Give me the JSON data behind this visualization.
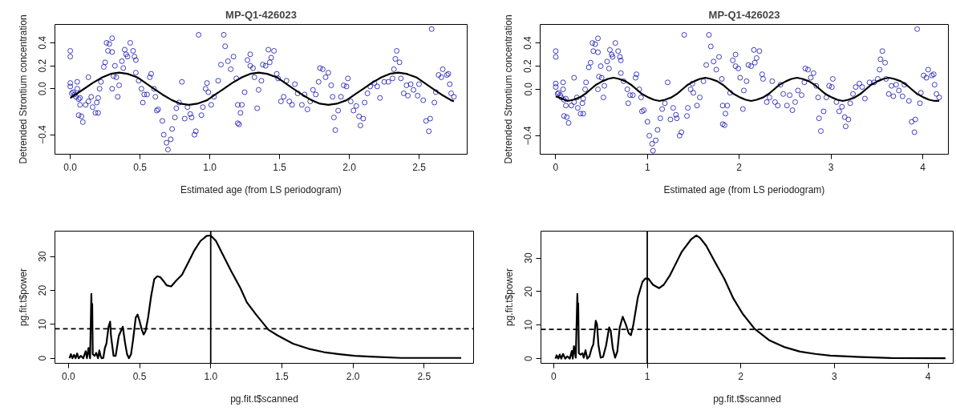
{
  "chart_data": [
    {
      "type": "scatter",
      "title": "MP-Q1-426023",
      "xlabel": "Estimated age (from LS periodogram)",
      "ylabel": "Detrended Strontium concentration",
      "xlim": [
        -0.11,
        2.845
      ],
      "ylim": [
        -0.57,
        0.56
      ],
      "xticks": [
        {
          "value": 0,
          "label": "0.0"
        },
        {
          "value": 0.5,
          "label": "0.5"
        },
        {
          "value": 1,
          "label": "1.0"
        },
        {
          "value": 1.5,
          "label": "1.5"
        },
        {
          "value": 2,
          "label": "2.0"
        },
        {
          "value": 2.5,
          "label": "2.5"
        }
      ],
      "yticks": [
        -0.4,
        {
          "value": 0,
          "label": "0.0"
        },
        0.2,
        0.4
      ],
      "series": [
        {
          "type": "scatter",
          "marker": "circle",
          "color": "#1010b0",
          "x": [
            0,
            0,
            0,
            0,
            0.01,
            0.02,
            0.03,
            0.04,
            0.05,
            0.05,
            0.06,
            0.07,
            0.06,
            0.07,
            0.08,
            0.09,
            0.11,
            0.13,
            0.13,
            0.15,
            0.16,
            0.18,
            0.19,
            0.2,
            0.2,
            0.21,
            0.22,
            0.24,
            0.25,
            0.26,
            0.27,
            0.28,
            0.3,
            0.3,
            0.3,
            0.31,
            0.32,
            0.33,
            0.34,
            0.35,
            0.37,
            0.38,
            0.39,
            0.4,
            0.41,
            0.43,
            0.45,
            0.46,
            0.47,
            0.47,
            0.49,
            0.51,
            0.52,
            0.53,
            0.55,
            0.57,
            0.58,
            0.6,
            0.61,
            0.62,
            0.63,
            0.66,
            0.67,
            0.69,
            0.7,
            0.72,
            0.73,
            0.75,
            0.76,
            0.78,
            0.8,
            0.82,
            0.84,
            0.86,
            0.87,
            0.89,
            0.9,
            0.92,
            0.94,
            0.95,
            0.97,
            0.98,
            0.99,
            1.01,
            1.03,
            1.06,
            1.08,
            1.1,
            1.11,
            1.13,
            1.15,
            1.17,
            1.19,
            1.2,
            1.2,
            1.21,
            1.22,
            1.23,
            1.25,
            1.27,
            1.29,
            1.29,
            1.31,
            1.32,
            1.34,
            1.35,
            1.37,
            1.38,
            1.4,
            1.42,
            1.43,
            1.44,
            1.46,
            1.48,
            1.49,
            1.51,
            1.53,
            1.55,
            1.57,
            1.59,
            1.61,
            1.63,
            1.66,
            1.68,
            1.7,
            1.72,
            1.74,
            1.76,
            1.78,
            1.79,
            1.81,
            1.83,
            1.85,
            1.87,
            1.88,
            1.89,
            1.9,
            1.92,
            1.94,
            1.96,
            1.98,
            1.99,
            2.01,
            2.03,
            2.05,
            2.07,
            2.08,
            2.1,
            2.11,
            2.13,
            2.15,
            2.18,
            2.2,
            2.22,
            2.25,
            2.28,
            2.31,
            2.32,
            2.33,
            2.34,
            2.36,
            2.37,
            2.39,
            2.41,
            2.42,
            2.44,
            2.46,
            2.49,
            2.5,
            2.53,
            2.55,
            2.57,
            2.58,
            2.59,
            2.61,
            2.62,
            2.64,
            2.66,
            2.67,
            2.7,
            2.71,
            2.72,
            2.73,
            2.75
          ],
          "values": [
            0.33,
            0.28,
            0.05,
            0.02,
            -0.04,
            -0.03,
            -0.05,
            -0.07,
            0,
            0.06,
            -0.09,
            -0.14,
            -0.23,
            -0.08,
            -0.24,
            -0.29,
            -0.14,
            0.1,
            -0.11,
            -0.07,
            -0.16,
            -0.21,
            -0.12,
            -0.08,
            -0.21,
            0,
            0.06,
            0.19,
            0.23,
            0.4,
            0.33,
            0.39,
            0.32,
            0.44,
            0,
            0.11,
            0.2,
            0.1,
            -0.07,
            0.03,
            0.24,
            0.18,
            0.34,
            0.3,
            0.28,
            0.4,
            0.33,
            0.28,
            0.25,
            0.14,
            0.07,
            0,
            -0.12,
            -0.05,
            -0.05,
            0.1,
            0.13,
            0,
            -0.07,
            -0.19,
            -0.18,
            -0.28,
            -0.4,
            -0.47,
            -0.53,
            -0.44,
            -0.35,
            -0.25,
            -0.17,
            -0.12,
            0.06,
            -0.26,
            -0.16,
            -0.22,
            -0.25,
            -0.4,
            -0.37,
            0.47,
            -0.23,
            -0.16,
            0,
            0.05,
            -0.03,
            -0.14,
            -0.07,
            0.07,
            0.21,
            0.47,
            0.37,
            0.24,
            0.17,
            0.28,
            0.09,
            -0.14,
            -0.3,
            -0.31,
            -0.21,
            -0.14,
            -0.03,
            0.25,
            0.3,
            0.2,
            0.18,
            0.1,
            -0.17,
            -0.01,
            0.07,
            0.21,
            0.2,
            0.34,
            0.23,
            0.27,
            0.33,
            0.13,
            0.09,
            -0.11,
            -0.07,
            0.07,
            -0.11,
            -0.14,
            0.04,
            -0.04,
            -0.14,
            -0.05,
            -0.18,
            -0.11,
            -0.01,
            -0.05,
            0.06,
            0.18,
            0.17,
            0.1,
            0.14,
            0.03,
            -0.07,
            -0.25,
            -0.36,
            -0.19,
            -0.07,
            0.03,
            0.02,
            0.09,
            -0.11,
            -0.19,
            -0.15,
            -0.24,
            -0.32,
            -0.26,
            -0.12,
            -0.04,
            0.02,
            0.05,
            0.02,
            -0.08,
            0.06,
            0.06,
            0.09,
            0.17,
            0.26,
            0.33,
            0.23,
            0.09,
            -0.04,
            0.03,
            -0.06,
            0.04,
            -0.01,
            -0.06,
            0.04,
            -0.1,
            -0.28,
            -0.37,
            -0.26,
            0.52,
            -0.12,
            -0.03,
            0.12,
            0.1,
            0.17,
            0.12,
            0.13,
            0.04,
            -0.04,
            -0.07
          ]
        },
        {
          "type": "line",
          "color": "#000000",
          "x": [
            0,
            0.1,
            0.16,
            0.23,
            0.29,
            0.35,
            0.41,
            0.48,
            0.54,
            0.6,
            0.66,
            0.73,
            0.79,
            0.85,
            0.91,
            0.98,
            1.04,
            1.1,
            1.16,
            1.23,
            1.29,
            1.35,
            1.41,
            1.48,
            1.54,
            1.6,
            1.66,
            1.73,
            1.79,
            1.85,
            1.91,
            1.98,
            2.04,
            2.1,
            2.16,
            2.23,
            2.29,
            2.35,
            2.41,
            2.48,
            2.54,
            2.6,
            2.66,
            2.73,
            2.75
          ],
          "values": [
            -0.08,
            0,
            0.05,
            0.1,
            0.13,
            0.14,
            0.13,
            0.1,
            0.05,
            0,
            -0.05,
            -0.1,
            -0.13,
            -0.14,
            -0.13,
            -0.1,
            -0.05,
            0,
            0.05,
            0.1,
            0.13,
            0.14,
            0.13,
            0.1,
            0.05,
            0,
            -0.05,
            -0.1,
            -0.13,
            -0.14,
            -0.13,
            -0.1,
            -0.05,
            0,
            0.05,
            0.1,
            0.13,
            0.14,
            0.13,
            0.1,
            0.05,
            0,
            -0.05,
            -0.1,
            -0.11
          ]
        }
      ]
    },
    {
      "type": "scatter",
      "title": "MP-Q1-426023",
      "xlabel": "Estimated age (from LS periodogram)",
      "ylabel": "Detrended Strontium concentration",
      "xlim": [
        -0.17,
        4.28
      ],
      "ylim": [
        -0.56,
        0.56
      ],
      "xticks": [
        0,
        1,
        2,
        3,
        4
      ],
      "yticks": [
        -0.4,
        {
          "value": 0,
          "label": "0.0"
        },
        0.2,
        0.4
      ],
      "series": [
        {
          "type": "scatter",
          "marker": "circle",
          "color": "#1010b0",
          "x": [
            0,
            0,
            0,
            0,
            0.02,
            0.03,
            0.05,
            0.06,
            0.08,
            0.08,
            0.09,
            0.11,
            0.09,
            0.11,
            0.12,
            0.14,
            0.17,
            0.2,
            0.2,
            0.23,
            0.24,
            0.27,
            0.29,
            0.3,
            0.3,
            0.32,
            0.33,
            0.36,
            0.38,
            0.4,
            0.41,
            0.43,
            0.46,
            0.46,
            0.46,
            0.47,
            0.49,
            0.5,
            0.52,
            0.53,
            0.56,
            0.58,
            0.59,
            0.61,
            0.62,
            0.65,
            0.68,
            0.7,
            0.71,
            0.71,
            0.74,
            0.78,
            0.79,
            0.81,
            0.84,
            0.87,
            0.88,
            0.91,
            0.93,
            0.94,
            0.96,
            1,
            1.02,
            1.05,
            1.06,
            1.09,
            1.11,
            1.14,
            1.16,
            1.19,
            1.22,
            1.25,
            1.28,
            1.31,
            1.32,
            1.35,
            1.37,
            1.4,
            1.43,
            1.44,
            1.47,
            1.49,
            1.5,
            1.54,
            1.57,
            1.61,
            1.64,
            1.67,
            1.69,
            1.72,
            1.75,
            1.78,
            1.81,
            1.82,
            1.82,
            1.84,
            1.85,
            1.87,
            1.9,
            1.93,
            1.96,
            1.96,
            1.99,
            2.01,
            2.04,
            2.05,
            2.08,
            2.1,
            2.13,
            2.16,
            2.17,
            2.19,
            2.22,
            2.25,
            2.26,
            2.3,
            2.33,
            2.36,
            2.39,
            2.42,
            2.45,
            2.48,
            2.52,
            2.55,
            2.58,
            2.61,
            2.64,
            2.68,
            2.71,
            2.72,
            2.75,
            2.78,
            2.81,
            2.84,
            2.86,
            2.87,
            2.89,
            2.92,
            2.95,
            2.98,
            3.01,
            3.02,
            3.06,
            3.09,
            3.12,
            3.15,
            3.16,
            3.19,
            3.21,
            3.24,
            3.27,
            3.31,
            3.34,
            3.37,
            3.42,
            3.47,
            3.51,
            3.53,
            3.54,
            3.56,
            3.59,
            3.6,
            3.63,
            3.66,
            3.68,
            3.71,
            3.74,
            3.78,
            3.8,
            3.85,
            3.88,
            3.91,
            3.92,
            3.94,
            3.97,
            3.98,
            4.01,
            4.04,
            4.06,
            4.1,
            4.12,
            4.13,
            4.15,
            4.18
          ],
          "values": [
            0.33,
            0.28,
            0.05,
            0.02,
            -0.04,
            -0.03,
            -0.05,
            -0.07,
            0,
            0.06,
            -0.09,
            -0.14,
            -0.23,
            -0.08,
            -0.24,
            -0.29,
            -0.14,
            0.1,
            -0.11,
            -0.07,
            -0.16,
            -0.21,
            -0.12,
            -0.08,
            -0.21,
            0,
            0.06,
            0.19,
            0.23,
            0.4,
            0.33,
            0.39,
            0.32,
            0.44,
            0,
            0.11,
            0.2,
            0.1,
            -0.07,
            0.03,
            0.24,
            0.18,
            0.34,
            0.3,
            0.28,
            0.4,
            0.33,
            0.28,
            0.25,
            0.14,
            0.07,
            0,
            -0.12,
            -0.05,
            -0.05,
            0.1,
            0.13,
            0,
            -0.07,
            -0.19,
            -0.18,
            -0.28,
            -0.4,
            -0.47,
            -0.53,
            -0.44,
            -0.35,
            -0.25,
            -0.17,
            -0.12,
            0.06,
            -0.26,
            -0.16,
            -0.22,
            -0.25,
            -0.4,
            -0.37,
            0.47,
            -0.23,
            -0.16,
            0,
            0.05,
            -0.03,
            -0.14,
            -0.07,
            0.07,
            0.21,
            0.47,
            0.37,
            0.24,
            0.17,
            0.28,
            0.09,
            -0.14,
            -0.3,
            -0.31,
            -0.21,
            -0.14,
            -0.03,
            0.25,
            0.3,
            0.2,
            0.18,
            0.1,
            -0.17,
            -0.01,
            0.07,
            0.21,
            0.2,
            0.34,
            0.23,
            0.27,
            0.33,
            0.13,
            0.09,
            -0.11,
            -0.07,
            0.07,
            -0.11,
            -0.14,
            0.04,
            -0.04,
            -0.14,
            -0.05,
            -0.18,
            -0.11,
            -0.01,
            -0.05,
            0.06,
            0.18,
            0.17,
            0.1,
            0.14,
            0.03,
            -0.07,
            -0.25,
            -0.36,
            -0.19,
            -0.07,
            0.03,
            0.02,
            0.09,
            -0.11,
            -0.19,
            -0.15,
            -0.24,
            -0.32,
            -0.26,
            -0.12,
            -0.04,
            0.02,
            0.05,
            0.02,
            -0.08,
            0.06,
            0.06,
            0.09,
            0.17,
            0.26,
            0.33,
            0.23,
            0.09,
            -0.04,
            0.03,
            -0.06,
            0.04,
            -0.01,
            -0.06,
            0.04,
            -0.1,
            -0.28,
            -0.37,
            -0.26,
            0.52,
            -0.12,
            -0.03,
            0.12,
            0.1,
            0.17,
            0.12,
            0.13,
            0.04,
            -0.04,
            -0.07
          ]
        },
        {
          "type": "line",
          "color": "#000000",
          "x": [
            0,
            0.13,
            0.19,
            0.26,
            0.32,
            0.38,
            0.44,
            0.51,
            0.57,
            0.63,
            0.69,
            0.76,
            0.82,
            0.88,
            0.94,
            1.01,
            1.07,
            1.13,
            1.19,
            1.26,
            1.32,
            1.38,
            1.44,
            1.51,
            1.57,
            1.63,
            1.69,
            1.76,
            1.82,
            1.88,
            1.94,
            2.01,
            2.07,
            2.13,
            2.19,
            2.26,
            2.32,
            2.38,
            2.44,
            2.51,
            2.57,
            2.63,
            2.69,
            2.76,
            2.82,
            2.88,
            2.94,
            3.01,
            3.07,
            3.13,
            3.19,
            3.26,
            3.32,
            3.38,
            3.44,
            3.51,
            3.57,
            3.63,
            3.69,
            3.76,
            3.82,
            3.88,
            3.94,
            4.01,
            4.07,
            4.13,
            4.18
          ],
          "values": [
            -0.06,
            -0.1,
            -0.09,
            -0.07,
            -0.04,
            0,
            0.04,
            0.07,
            0.09,
            0.1,
            0.09,
            0.07,
            0.04,
            0,
            -0.04,
            -0.07,
            -0.09,
            -0.1,
            -0.09,
            -0.07,
            -0.04,
            0,
            0.04,
            0.07,
            0.09,
            0.1,
            0.09,
            0.07,
            0.04,
            0,
            -0.04,
            -0.07,
            -0.09,
            -0.1,
            -0.09,
            -0.07,
            -0.04,
            0,
            0.04,
            0.07,
            0.09,
            0.1,
            0.09,
            0.07,
            0.04,
            0,
            -0.04,
            -0.07,
            -0.09,
            -0.1,
            -0.09,
            -0.07,
            -0.04,
            0,
            0.04,
            0.07,
            0.09,
            0.1,
            0.09,
            0.07,
            0.04,
            0,
            -0.04,
            -0.07,
            -0.09,
            -0.1,
            -0.1
          ]
        }
      ]
    },
    {
      "type": "line",
      "xlabel": "pg.fit.t$scanned",
      "ylabel": "pg.fit.t$power",
      "xlim": [
        -0.095,
        2.848
      ],
      "ylim": [
        -1.5,
        37.5
      ],
      "xticks": [
        {
          "value": 0,
          "label": "0.0"
        },
        {
          "value": 0.5,
          "label": "0.5"
        },
        {
          "value": 1,
          "label": "1.0"
        },
        {
          "value": 1.5,
          "label": "1.5"
        },
        {
          "value": 2,
          "label": "2.0"
        },
        {
          "value": 2.5,
          "label": "2.5"
        }
      ],
      "yticks": [
        0,
        10,
        20,
        30
      ],
      "ref_lines": [
        {
          "axis": "x",
          "value": 1,
          "color": "#000000",
          "line_style": "solid"
        },
        {
          "axis": "y",
          "value": 8.7,
          "color": "#000000",
          "line_style": "dashed"
        }
      ],
      "series": [
        {
          "color": "#000000",
          "x": [
            0.007,
            0.017,
            0.028,
            0.039,
            0.05,
            0.061,
            0.072,
            0.087,
            0.104,
            0.121,
            0.13,
            0.141,
            0.152,
            0.161,
            0.165,
            0.167,
            0.171,
            0.184,
            0.195,
            0.208,
            0.217,
            0.226,
            0.234,
            0.245,
            0.256,
            0.267,
            0.282,
            0.293,
            0.299,
            0.317,
            0.332,
            0.354,
            0.382,
            0.397,
            0.412,
            0.425,
            0.44,
            0.455,
            0.473,
            0.486,
            0.499,
            0.516,
            0.529,
            0.542,
            0.56,
            0.581,
            0.603,
            0.625,
            0.646,
            0.668,
            0.69,
            0.722,
            0.755,
            0.798,
            0.842,
            0.885,
            0.928,
            0.972,
            1,
            1.037,
            1.08,
            1.145,
            1.21,
            1.254,
            1.319,
            1.406,
            1.471,
            1.579,
            1.688,
            1.796,
            1.905,
            2.013,
            2.121,
            2.338,
            2.761
          ],
          "values": [
            0,
            1.2,
            0,
            1,
            0,
            1.4,
            0,
            0.7,
            0,
            2.1,
            0,
            3,
            0,
            19,
            9.2,
            16,
            1.2,
            0.7,
            1.6,
            0,
            2.3,
            0.7,
            0,
            0.1,
            3,
            4.3,
            9.3,
            10.8,
            6.6,
            0.7,
            0.7,
            6.6,
            9.3,
            4.8,
            1.2,
            0,
            1.2,
            5.7,
            12,
            12.9,
            11.1,
            8.4,
            7,
            8,
            12,
            18.3,
            23.3,
            24.2,
            23.9,
            22.8,
            21.5,
            21.2,
            22.8,
            24.6,
            28.2,
            31.8,
            34.6,
            36.1,
            36.2,
            34.6,
            31,
            25.6,
            20.6,
            16.5,
            12.9,
            8.4,
            6.7,
            4.3,
            2.8,
            1.8,
            1.2,
            0.7,
            0.5,
            0.1,
            0.1
          ]
        }
      ]
    },
    {
      "type": "line",
      "xlabel": "pg.fit.t$scanned",
      "ylabel": "pg.fit.t$power",
      "xlim": [
        -0.136,
        4.27
      ],
      "ylim": [
        -1.4,
        38
      ],
      "xticks": [
        0,
        1,
        2,
        3,
        4
      ],
      "yticks": [
        0,
        10,
        20,
        30
      ],
      "ref_lines": [
        {
          "axis": "x",
          "value": 1,
          "color": "#000000",
          "line_style": "solid"
        },
        {
          "axis": "y",
          "value": 8.7,
          "color": "#000000",
          "line_style": "dashed"
        }
      ],
      "series": [
        {
          "color": "#000000",
          "x": [
            0.019,
            0.032,
            0.049,
            0.065,
            0.081,
            0.1,
            0.123,
            0.146,
            0.172,
            0.194,
            0.204,
            0.217,
            0.236,
            0.253,
            0.259,
            0.262,
            0.269,
            0.288,
            0.308,
            0.321,
            0.34,
            0.36,
            0.382,
            0.405,
            0.424,
            0.45,
            0.463,
            0.479,
            0.502,
            0.528,
            0.56,
            0.593,
            0.609,
            0.632,
            0.657,
            0.68,
            0.706,
            0.738,
            0.771,
            0.803,
            0.826,
            0.852,
            0.9,
            0.949,
            0.981,
            1.013,
            1.062,
            1.127,
            1.176,
            1.24,
            1.305,
            1.37,
            1.467,
            1.525,
            1.564,
            1.629,
            1.726,
            1.824,
            1.921,
            2.019,
            2.147,
            2.309,
            2.471,
            2.633,
            2.795,
            2.957,
            3.281,
            3.605,
            4.188
          ],
          "values": [
            0,
            1,
            0,
            1.2,
            0,
            1.4,
            0,
            0.7,
            0,
            2.3,
            0,
            3.7,
            0.3,
            19.3,
            10.2,
            16.5,
            1.6,
            1.2,
            1.6,
            0.3,
            2.5,
            0,
            0.7,
            3,
            4.3,
            11.3,
            10.2,
            3.9,
            0.3,
            0.5,
            3.9,
            9.3,
            8.4,
            3,
            0.3,
            2.1,
            9.3,
            12.5,
            10.2,
            7.5,
            7,
            10.2,
            18.3,
            22.9,
            23.9,
            23.8,
            22,
            21,
            22,
            24.7,
            28.3,
            31.9,
            35.5,
            36.7,
            36,
            33.7,
            28.7,
            23.8,
            17.9,
            13.4,
            8.9,
            5.4,
            3.4,
            2.1,
            1.4,
            0.9,
            0.5,
            0.2,
            0.1
          ]
        }
      ]
    }
  ]
}
